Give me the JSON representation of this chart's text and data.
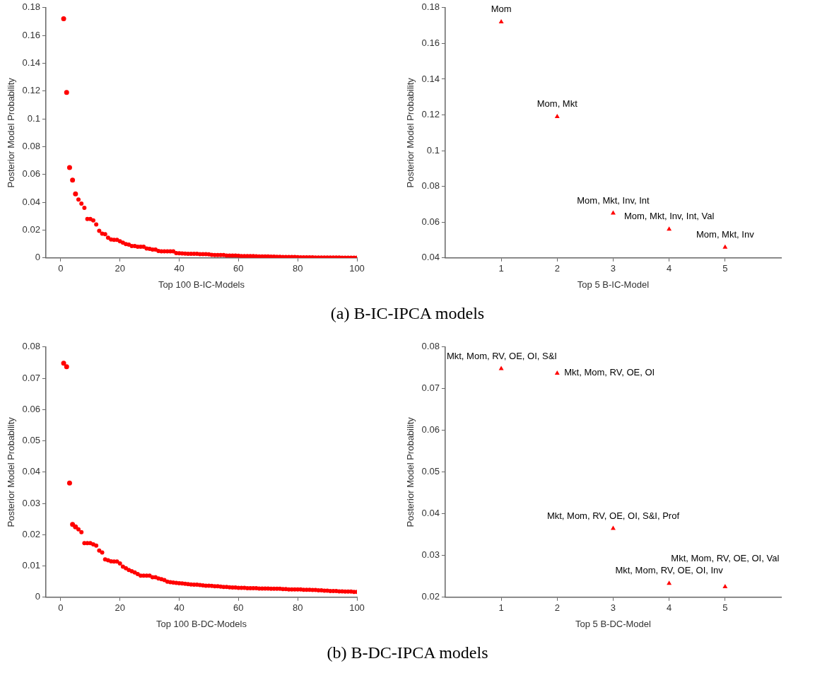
{
  "chart_data": [
    {
      "type": "scatter",
      "xlabel": "Top 100 B-IC-Models",
      "ylabel": "Posterior Model Probability",
      "xlim": [
        -5,
        100
      ],
      "xticks": [
        0,
        20,
        40,
        60,
        80,
        100
      ],
      "ylim": [
        0,
        0.18
      ],
      "yticks": [
        0,
        0.02,
        0.04,
        0.06,
        0.08,
        0.1,
        0.12,
        0.14,
        0.16,
        0.18
      ],
      "grid": false,
      "legend": false,
      "marker": "circle",
      "annotations": [
        "(a) B-IC-IPCA models"
      ],
      "x": [
        1,
        2,
        3,
        4,
        5,
        6,
        7,
        8,
        9,
        10,
        11,
        12,
        13,
        14,
        15,
        16,
        17,
        18,
        19,
        20,
        21,
        22,
        23,
        24,
        25,
        26,
        27,
        28,
        29,
        30,
        31,
        32,
        33,
        34,
        35,
        36,
        37,
        38,
        39,
        40,
        41,
        42,
        43,
        44,
        45,
        46,
        47,
        48,
        49,
        50,
        51,
        52,
        53,
        54,
        55,
        56,
        57,
        58,
        59,
        60,
        61,
        62,
        63,
        64,
        65,
        66,
        67,
        68,
        69,
        70,
        71,
        72,
        73,
        74,
        75,
        76,
        77,
        78,
        79,
        80,
        81,
        82,
        83,
        84,
        85,
        86,
        87,
        88,
        89,
        90,
        91,
        92,
        93,
        94,
        95,
        96,
        97,
        98,
        99,
        100
      ],
      "series": [
        {
          "color": "#ff0000",
          "values": [
            0.172,
            0.119,
            0.065,
            0.056,
            0.046,
            0.042,
            0.039,
            0.036,
            0.028,
            0.028,
            0.027,
            0.024,
            0.0195,
            0.0175,
            0.017,
            0.0145,
            0.0133,
            0.013,
            0.013,
            0.012,
            0.011,
            0.01,
            0.0095,
            0.0085,
            0.0085,
            0.008,
            0.008,
            0.008,
            0.0067,
            0.0065,
            0.006,
            0.006,
            0.005,
            0.0047,
            0.0047,
            0.0047,
            0.0047,
            0.0047,
            0.0035,
            0.0033,
            0.0032,
            0.0031,
            0.003,
            0.003,
            0.003,
            0.003,
            0.0027,
            0.0027,
            0.0027,
            0.0026,
            0.0022,
            0.0021,
            0.0021,
            0.0021,
            0.0021,
            0.0017,
            0.0017,
            0.0017,
            0.0017,
            0.0015,
            0.0013,
            0.0013,
            0.0013,
            0.0013,
            0.0013,
            0.0012,
            0.0011,
            0.0011,
            0.001,
            0.001,
            0.0009,
            0.0009,
            0.0008,
            0.0008,
            0.0007,
            0.0007,
            0.0007,
            0.0006,
            0.0006,
            0.0005,
            0.0004,
            0.0004,
            0.0004,
            0.0004,
            0.0004,
            0.0003,
            0.0003,
            0.0003,
            0.0003,
            0.0003,
            0.0003,
            0.0003,
            0.0003,
            0.0003,
            0.0002,
            0.0002,
            0.0002,
            0.0002,
            0.0002,
            0.0002
          ]
        }
      ]
    },
    {
      "type": "scatter",
      "xlabel": "Top 5 B-IC-Model",
      "ylabel": "Posterior Model Probability",
      "xlim": [
        0,
        6
      ],
      "xticks": [
        1,
        2,
        3,
        4,
        5
      ],
      "ylim": [
        0.04,
        0.18
      ],
      "yticks": [
        0.04,
        0.06,
        0.08,
        0.1,
        0.12,
        0.14,
        0.16,
        0.18
      ],
      "grid": false,
      "legend": false,
      "marker": "triangle",
      "x": [
        1,
        2,
        3,
        4,
        5
      ],
      "series": [
        {
          "color": "#ff0000",
          "values": [
            0.172,
            0.119,
            0.065,
            0.056,
            0.046
          ]
        }
      ],
      "annotations": [
        {
          "text": "Mom",
          "x": 1,
          "y": 0.172
        },
        {
          "text": "Mom, Mkt",
          "x": 2,
          "y": 0.119
        },
        {
          "text": "Mom, Mkt, Inv, Int",
          "x": 3,
          "y": 0.065
        },
        {
          "text": "Mom, Mkt, Inv, Int, Val",
          "x": 4,
          "y": 0.056
        },
        {
          "text": "Mom, Mkt, Inv",
          "x": 5,
          "y": 0.046
        }
      ]
    },
    {
      "type": "scatter",
      "xlabel": "Top 100 B-DC-Models",
      "ylabel": "Posterior Model Probability",
      "xlim": [
        -5,
        100
      ],
      "xticks": [
        0,
        20,
        40,
        60,
        80,
        100
      ],
      "ylim": [
        0,
        0.08
      ],
      "yticks": [
        0,
        0.01,
        0.02,
        0.03,
        0.04,
        0.05,
        0.06,
        0.07,
        0.08
      ],
      "grid": false,
      "legend": false,
      "marker": "circle",
      "annotations": [
        "(b) B-DC-IPCA models"
      ],
      "x": [
        1,
        2,
        3,
        4,
        5,
        6,
        7,
        8,
        9,
        10,
        11,
        12,
        13,
        14,
        15,
        16,
        17,
        18,
        19,
        20,
        21,
        22,
        23,
        24,
        25,
        26,
        27,
        28,
        29,
        30,
        31,
        32,
        33,
        34,
        35,
        36,
        37,
        38,
        39,
        40,
        41,
        42,
        43,
        44,
        45,
        46,
        47,
        48,
        49,
        50,
        51,
        52,
        53,
        54,
        55,
        56,
        57,
        58,
        59,
        60,
        61,
        62,
        63,
        64,
        65,
        66,
        67,
        68,
        69,
        70,
        71,
        72,
        73,
        74,
        75,
        76,
        77,
        78,
        79,
        80,
        81,
        82,
        83,
        84,
        85,
        86,
        87,
        88,
        89,
        90,
        91,
        92,
        93,
        94,
        95,
        96,
        97,
        98,
        99,
        100
      ],
      "series": [
        {
          "color": "#ff0000",
          "values": [
            0.0748,
            0.0737,
            0.0365,
            0.0233,
            0.0225,
            0.0217,
            0.0208,
            0.0173,
            0.0173,
            0.0173,
            0.0169,
            0.0165,
            0.0149,
            0.0143,
            0.0121,
            0.0118,
            0.0115,
            0.0114,
            0.0114,
            0.0108,
            0.0098,
            0.0093,
            0.0087,
            0.0083,
            0.0079,
            0.0074,
            0.0069,
            0.0069,
            0.0069,
            0.0069,
            0.0064,
            0.0064,
            0.006,
            0.0058,
            0.0055,
            0.005,
            0.0048,
            0.0047,
            0.0046,
            0.0045,
            0.0044,
            0.0043,
            0.0042,
            0.0041,
            0.004,
            0.004,
            0.0039,
            0.0038,
            0.0037,
            0.0037,
            0.0036,
            0.0035,
            0.0035,
            0.0034,
            0.0033,
            0.0033,
            0.0032,
            0.0031,
            0.0031,
            0.003,
            0.003,
            0.003,
            0.0029,
            0.0029,
            0.0029,
            0.0029,
            0.0028,
            0.0028,
            0.0028,
            0.0028,
            0.0027,
            0.0027,
            0.0027,
            0.0027,
            0.0026,
            0.0026,
            0.0025,
            0.0025,
            0.0025,
            0.0025,
            0.0025,
            0.0024,
            0.0024,
            0.0024,
            0.0023,
            0.0023,
            0.0022,
            0.0022,
            0.0021,
            0.0021,
            0.002,
            0.002,
            0.002,
            0.0019,
            0.0019,
            0.0018,
            0.0018,
            0.0018,
            0.0017,
            0.0017
          ]
        }
      ]
    },
    {
      "type": "scatter",
      "xlabel": "Top 5 B-DC-Model",
      "ylabel": "Posterior Model Probability",
      "xlim": [
        0,
        6
      ],
      "xticks": [
        1,
        2,
        3,
        4,
        5
      ],
      "ylim": [
        0.02,
        0.08
      ],
      "yticks": [
        0.02,
        0.03,
        0.04,
        0.05,
        0.06,
        0.07,
        0.08
      ],
      "grid": false,
      "legend": false,
      "marker": "triangle",
      "x": [
        1,
        2,
        3,
        4,
        5
      ],
      "series": [
        {
          "color": "#ff0000",
          "values": [
            0.0748,
            0.0737,
            0.0365,
            0.0233,
            0.0225
          ]
        }
      ],
      "annotations": [
        {
          "text": "Mkt, Mom, RV, OE, OI, S&I",
          "x": 1,
          "y": 0.0748
        },
        {
          "text": "Mkt, Mom, RV, OE, OI",
          "x": 2,
          "y": 0.0737
        },
        {
          "text": "Mkt, Mom, RV, OE, OI, S&I, Prof",
          "x": 3,
          "y": 0.0365
        },
        {
          "text": "Mkt, Mom, RV, OE, OI, Inv",
          "x": 4,
          "y": 0.0233
        },
        {
          "text": "Mkt, Mom, RV, OE, OI, Val",
          "x": 5,
          "y": 0.0225
        }
      ]
    }
  ]
}
